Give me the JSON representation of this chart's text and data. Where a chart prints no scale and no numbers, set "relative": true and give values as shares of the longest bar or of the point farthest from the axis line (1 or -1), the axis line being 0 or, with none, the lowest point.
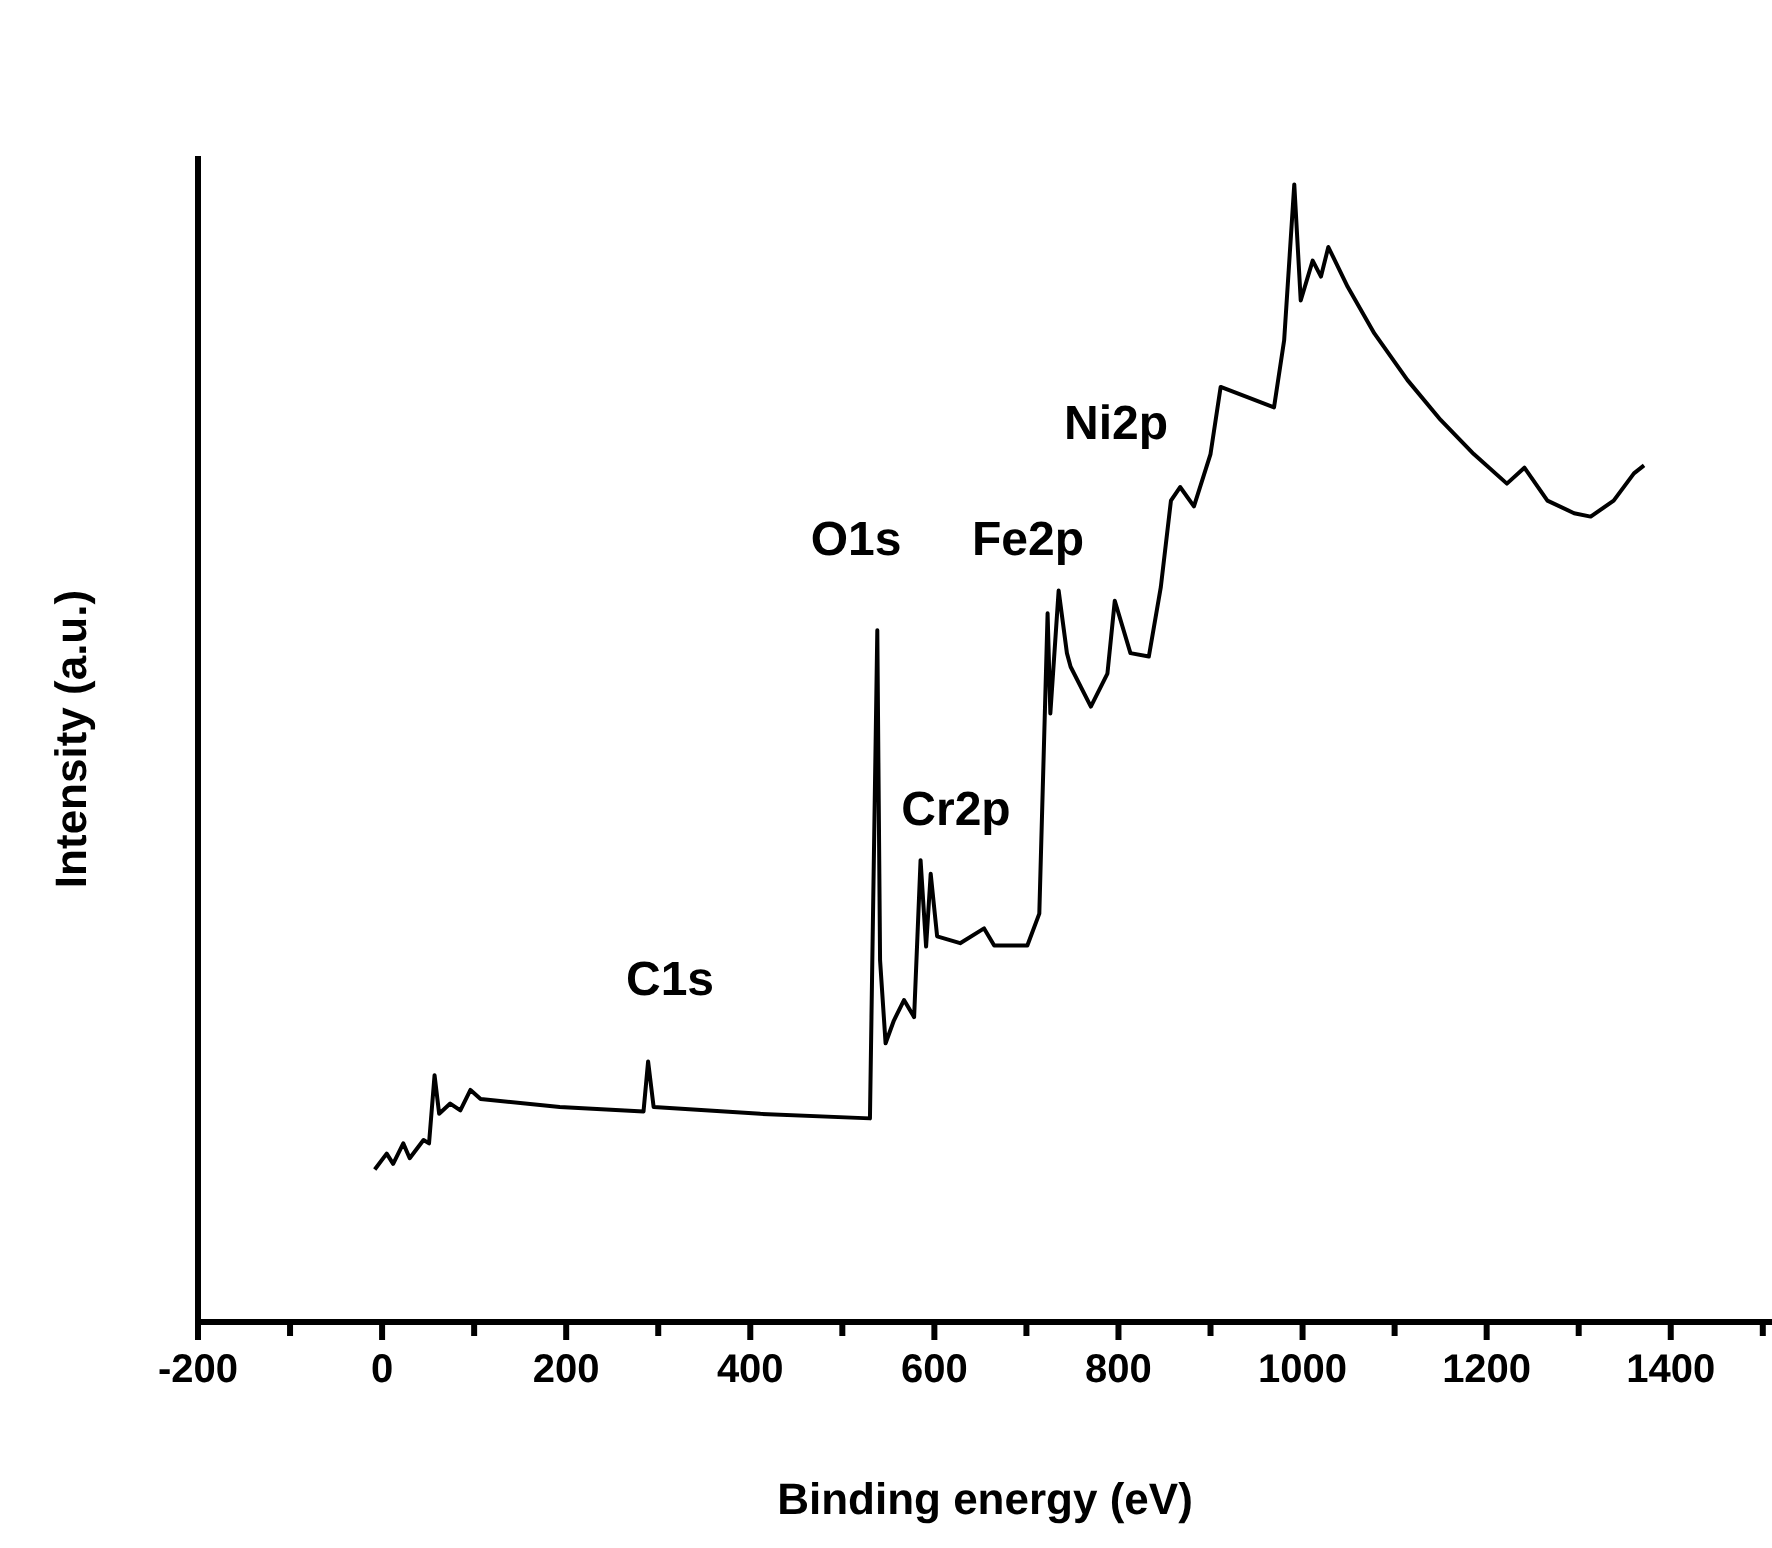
{
  "chart_data": {
    "type": "line",
    "xlabel": "Binding energy (eV)",
    "ylabel": "Intensity (a.u.)",
    "relative": true,
    "x": [
      -8,
      5,
      12,
      23,
      30,
      45,
      51,
      57,
      62,
      74,
      85,
      96,
      107,
      193,
      284,
      289,
      295,
      411,
      530,
      538,
      541,
      547,
      556,
      567,
      578,
      585,
      591,
      596,
      603,
      628,
      654,
      665,
      701,
      714,
      723,
      726,
      735,
      744,
      748,
      770,
      788,
      796,
      813,
      833,
      846,
      857,
      867,
      882,
      900,
      911,
      940,
      969,
      980,
      991,
      998,
      1011,
      1020,
      1028,
      1049,
      1078,
      1114,
      1150,
      1186,
      1222,
      1241,
      1266,
      1295,
      1313,
      1338,
      1360,
      1371
    ],
    "values": [
      0.134,
      0.148,
      0.139,
      0.157,
      0.144,
      0.16,
      0.157,
      0.217,
      0.183,
      0.192,
      0.186,
      0.204,
      0.196,
      0.189,
      0.185,
      0.229,
      0.189,
      0.183,
      0.179,
      0.608,
      0.318,
      0.245,
      0.265,
      0.283,
      0.268,
      0.406,
      0.33,
      0.394,
      0.339,
      0.333,
      0.346,
      0.331,
      0.331,
      0.359,
      0.623,
      0.535,
      0.643,
      0.588,
      0.576,
      0.541,
      0.57,
      0.634,
      0.588,
      0.585,
      0.646,
      0.722,
      0.734,
      0.717,
      0.763,
      0.822,
      0.813,
      0.804,
      0.863,
      1,
      0.898,
      0.933,
      0.919,
      0.945,
      0.91,
      0.869,
      0.828,
      0.793,
      0.763,
      0.737,
      0.751,
      0.722,
      0.711,
      0.708,
      0.722,
      0.746,
      0.753
    ],
    "color": "#000000",
    "xlim": [
      -200,
      1510
    ],
    "xticks": [
      -200,
      {
        "value": -100,
        "label": null
      },
      0,
      {
        "value": 100,
        "label": null
      },
      200,
      {
        "value": 300,
        "label": null
      },
      400,
      {
        "value": 500,
        "label": null
      },
      600,
      {
        "value": 700,
        "label": null
      },
      800,
      {
        "value": 900,
        "label": null
      },
      1000,
      {
        "value": 1100,
        "label": null
      },
      1200,
      {
        "value": 1300,
        "label": null
      },
      1400,
      {
        "value": 1500,
        "label": null
      }
    ],
    "annotations": [
      "C1s",
      "O1s",
      "Fe2p",
      "Cr2p",
      "Ni2p"
    ],
    "grid": false,
    "legend": false,
    "marker": "none",
    "line_style": "solid"
  }
}
